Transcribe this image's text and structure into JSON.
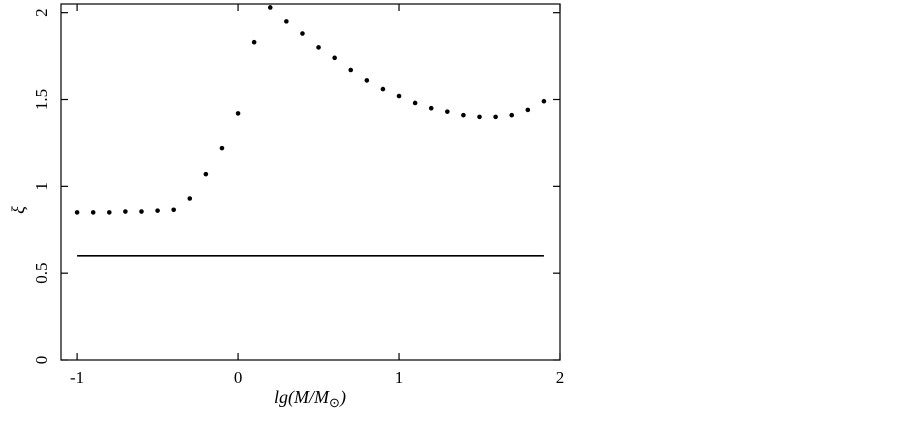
{
  "chart_data": {
    "type": "scatter",
    "xlabel": "lg(M/M",
    "xlabel_sub": "⊙",
    "xlabel_close": ")",
    "ylabel": "ξ",
    "xlim": [
      -1.1,
      2.0
    ],
    "ylim": [
      0,
      2.05
    ],
    "xticks": [
      -1,
      0,
      1,
      2
    ],
    "xtick_labels": [
      "-1",
      "0",
      "1",
      "2"
    ],
    "yticks": [
      0,
      0.5,
      1,
      1.5,
      2
    ],
    "ytick_labels": [
      "0",
      "0.5",
      "1",
      "1.5",
      "2"
    ],
    "grid": false,
    "series": [
      {
        "style": "points",
        "x": [
          -1.0,
          -0.9,
          -0.8,
          -0.7,
          -0.6,
          -0.5,
          -0.4,
          -0.3,
          -0.2,
          -0.1,
          0.0,
          0.1,
          0.2,
          0.3,
          0.4,
          0.5,
          0.6,
          0.7,
          0.8,
          0.9,
          1.0,
          1.1,
          1.2,
          1.3,
          1.4,
          1.5,
          1.6,
          1.7,
          1.8,
          1.9
        ],
        "y": [
          0.85,
          0.85,
          0.85,
          0.855,
          0.855,
          0.86,
          0.865,
          0.93,
          1.07,
          1.22,
          1.42,
          1.83,
          2.03,
          1.95,
          1.88,
          1.8,
          1.74,
          1.67,
          1.61,
          1.56,
          1.52,
          1.48,
          1.45,
          1.43,
          1.41,
          1.4,
          1.4,
          1.41,
          1.44,
          1.49
        ]
      },
      {
        "style": "line",
        "x": [
          -1.0,
          1.9
        ],
        "y": [
          0.6,
          0.6
        ]
      }
    ],
    "colors": {
      "points": "#000000",
      "line": "#000000",
      "axes": "#000000"
    }
  }
}
